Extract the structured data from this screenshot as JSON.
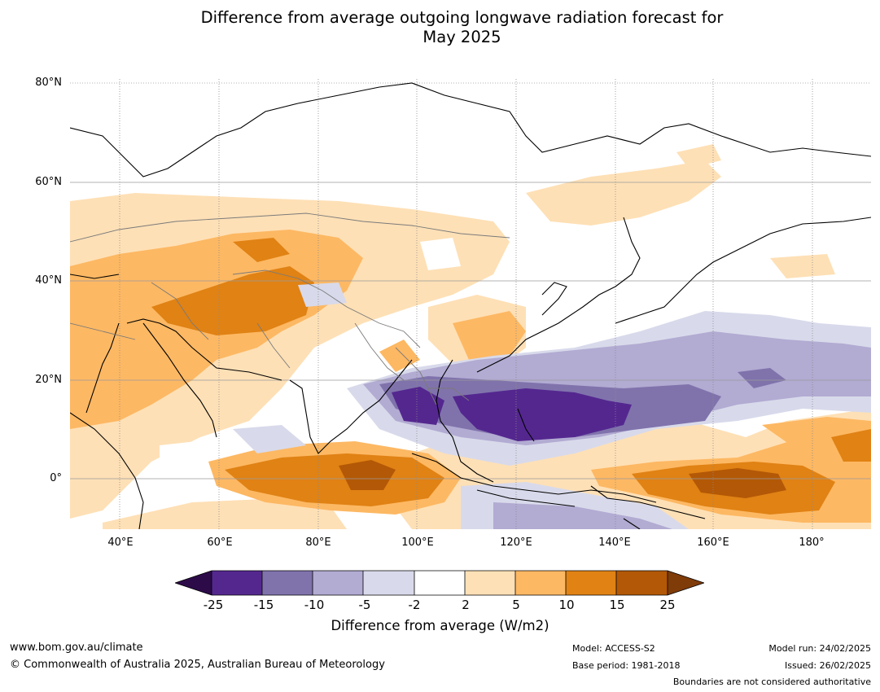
{
  "title_line1": "Difference from average outgoing longwave radiation forecast for",
  "title_line2": "May 2025",
  "lat_labels": [
    "80°N",
    "60°N",
    "40°N",
    "20°N",
    "0°"
  ],
  "lon_labels": [
    "40°E",
    "60°E",
    "80°E",
    "100°E",
    "120°E",
    "140°E",
    "160°E",
    "180°"
  ],
  "colorbar": {
    "ticks": [
      "-25",
      "-15",
      "-10",
      "-5",
      "-2",
      "2",
      "5",
      "10",
      "15",
      "25"
    ],
    "colors": [
      "#2d0b49",
      "#54278f",
      "#8073ac",
      "#b2abd2",
      "#d8daeb",
      "#ffffff",
      "#fee0b6",
      "#fdb863",
      "#e08214",
      "#b35806",
      "#7f3b08"
    ],
    "label": "Difference from average (W/m2)"
  },
  "footer": {
    "website": "www.bom.gov.au/climate",
    "copyright": "© Commonwealth of Australia 2025, Australian Bureau of Meteorology",
    "model": "Model: ACCESS-S2",
    "base_period": "Base period: 1981-2018",
    "model_run": "Model run: 24/02/2025",
    "issued": "Issued: 26/02/2025",
    "disclaimer": "Boundaries are not considered authoritative"
  }
}
